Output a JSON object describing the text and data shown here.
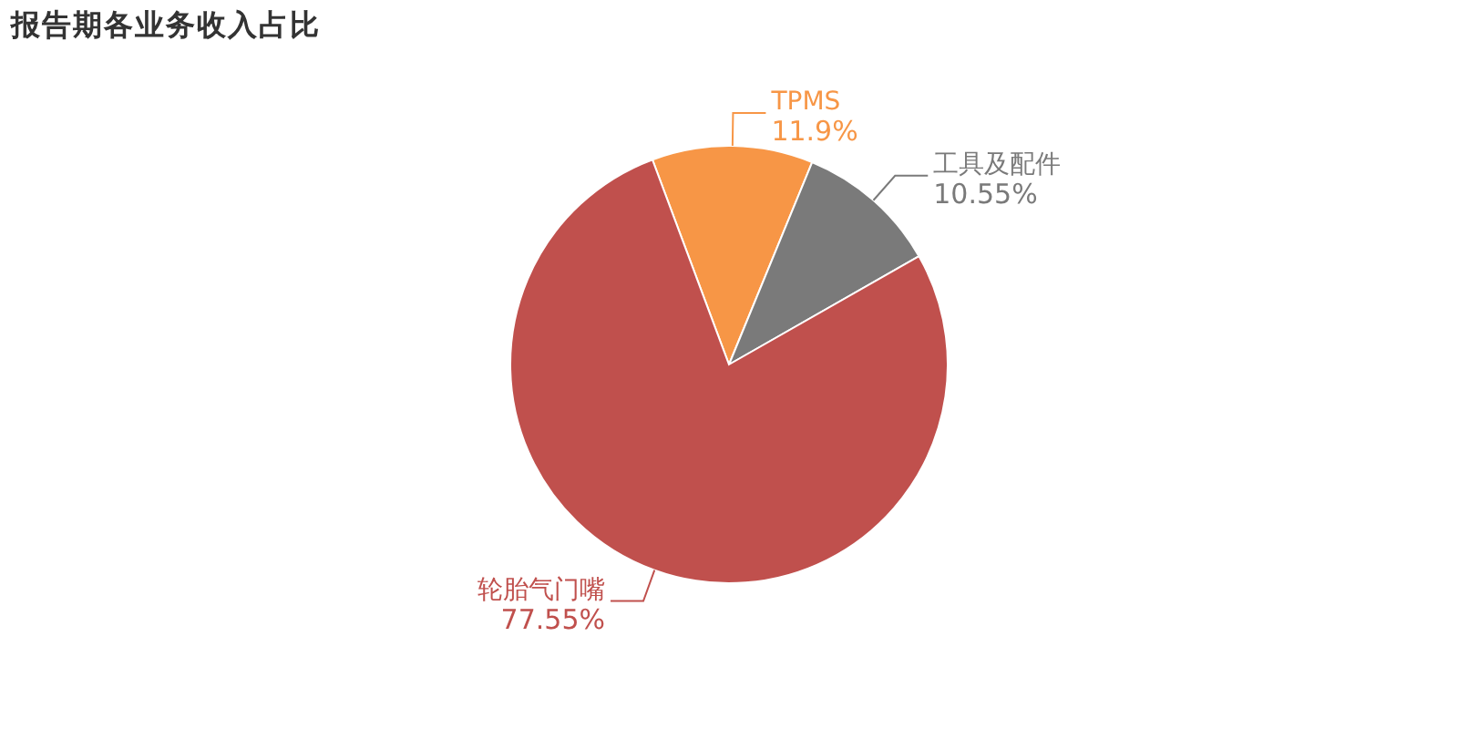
{
  "chart_data": {
    "type": "pie",
    "title": "报告期各业务收入占比",
    "categories": [
      "TPMS",
      "工具及配件",
      "轮胎气门嘴"
    ],
    "values": [
      11.9,
      10.55,
      77.55
    ],
    "value_labels": [
      "11.9%",
      "10.55%",
      "77.55%"
    ],
    "colors": [
      "#f79646",
      "#7a7a7a",
      "#c0504d"
    ]
  }
}
